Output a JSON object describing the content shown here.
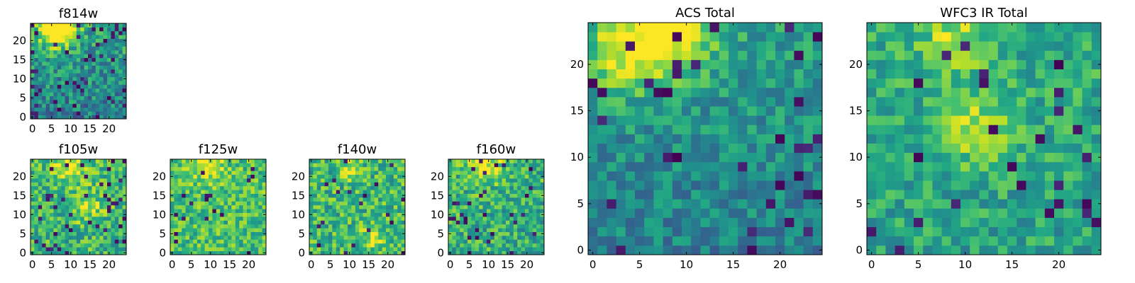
{
  "colormap": "viridis",
  "chart_data": [
    {
      "type": "heatmap",
      "title": "f814w",
      "grid_size": 25,
      "xticks": [
        0,
        5,
        10,
        15,
        20
      ],
      "yticks": [
        0,
        5,
        10,
        15,
        20
      ],
      "xlim": [
        -0.5,
        24.5
      ],
      "ylim": [
        -0.5,
        24.5
      ],
      "pattern": {
        "seed": 11,
        "base": 0.5,
        "noise": 0.22,
        "yGrad": 0.15,
        "blobs": [
          {
            "x": 8,
            "y": 23.5,
            "r": 3,
            "a": 0.55
          },
          {
            "x": 5,
            "y": 22,
            "r": 3,
            "a": 0.35
          }
        ],
        "darkFrac": 0.08
      }
    },
    {
      "type": "heatmap",
      "title": "f105w",
      "grid_size": 25,
      "xticks": [
        0,
        5,
        10,
        15,
        20
      ],
      "yticks": [
        0,
        5,
        10,
        15,
        20
      ],
      "xlim": [
        -0.5,
        24.5
      ],
      "ylim": [
        -0.5,
        24.5
      ],
      "pattern": {
        "seed": 23,
        "base": 0.66,
        "noise": 0.22,
        "yGrad": 0.02,
        "blobs": [
          {
            "x": 10,
            "y": 23,
            "r": 3,
            "a": 0.35
          },
          {
            "x": 14,
            "y": 12,
            "r": 3,
            "a": 0.2
          }
        ],
        "darkFrac": 0.06
      }
    },
    {
      "type": "heatmap",
      "title": "f125w",
      "grid_size": 25,
      "xticks": [
        0,
        5,
        10,
        15,
        20
      ],
      "yticks": [
        0,
        5,
        10,
        15,
        20
      ],
      "xlim": [
        -0.5,
        24.5
      ],
      "ylim": [
        -0.5,
        24.5
      ],
      "pattern": {
        "seed": 37,
        "base": 0.7,
        "noise": 0.2,
        "yGrad": 0.02,
        "blobs": [
          {
            "x": 9,
            "y": 23,
            "r": 3,
            "a": 0.3
          }
        ],
        "darkFrac": 0.03
      }
    },
    {
      "type": "heatmap",
      "title": "f140w",
      "grid_size": 25,
      "xticks": [
        0,
        5,
        10,
        15,
        20
      ],
      "yticks": [
        0,
        5,
        10,
        15,
        20
      ],
      "xlim": [
        -0.5,
        24.5
      ],
      "ylim": [
        -0.5,
        24.5
      ],
      "pattern": {
        "seed": 41,
        "base": 0.66,
        "noise": 0.22,
        "yGrad": 0.0,
        "blobs": [
          {
            "x": 10,
            "y": 22,
            "r": 2,
            "a": 0.25
          },
          {
            "x": 16,
            "y": 4,
            "r": 2.5,
            "a": 0.25
          }
        ],
        "darkFrac": 0.04
      }
    },
    {
      "type": "heatmap",
      "title": "f160w",
      "grid_size": 25,
      "xticks": [
        0,
        5,
        10,
        15,
        20
      ],
      "yticks": [
        0,
        5,
        10,
        15,
        20
      ],
      "xlim": [
        -0.5,
        24.5
      ],
      "ylim": [
        -0.5,
        24.5
      ],
      "pattern": {
        "seed": 53,
        "base": 0.64,
        "noise": 0.22,
        "yGrad": 0.03,
        "blobs": [
          {
            "x": 9,
            "y": 23,
            "r": 3,
            "a": 0.35
          }
        ],
        "darkFrac": 0.06
      }
    },
    {
      "type": "heatmap",
      "title": "ACS Total",
      "grid_size": 25,
      "xticks": [
        0,
        5,
        10,
        15,
        20
      ],
      "yticks": [
        0,
        5,
        10,
        15,
        20
      ],
      "xlim": [
        -0.5,
        24.5
      ],
      "ylim": [
        -0.5,
        24.5
      ],
      "pattern": {
        "seed": 67,
        "base": 0.5,
        "noise": 0.16,
        "yGrad": 0.12,
        "blobs": [
          {
            "x": 8,
            "y": 23.5,
            "r": 3.5,
            "a": 0.5
          },
          {
            "x": 3,
            "y": 21,
            "r": 3,
            "a": 0.3
          }
        ],
        "darkFrac": 0.05
      }
    },
    {
      "type": "heatmap",
      "title": "WFC3 IR Total",
      "grid_size": 25,
      "xticks": [
        0,
        5,
        10,
        15,
        20
      ],
      "yticks": [
        0,
        5,
        10,
        15,
        20
      ],
      "xlim": [
        -0.5,
        24.5
      ],
      "ylim": [
        -0.5,
        24.5
      ],
      "pattern": {
        "seed": 79,
        "base": 0.6,
        "noise": 0.17,
        "yGrad": 0.05,
        "blobs": [
          {
            "x": 11,
            "y": 13,
            "r": 2.5,
            "a": 0.3
          },
          {
            "x": 9,
            "y": 23,
            "r": 2.5,
            "a": 0.25
          }
        ],
        "darkFrac": 0.04
      }
    }
  ]
}
